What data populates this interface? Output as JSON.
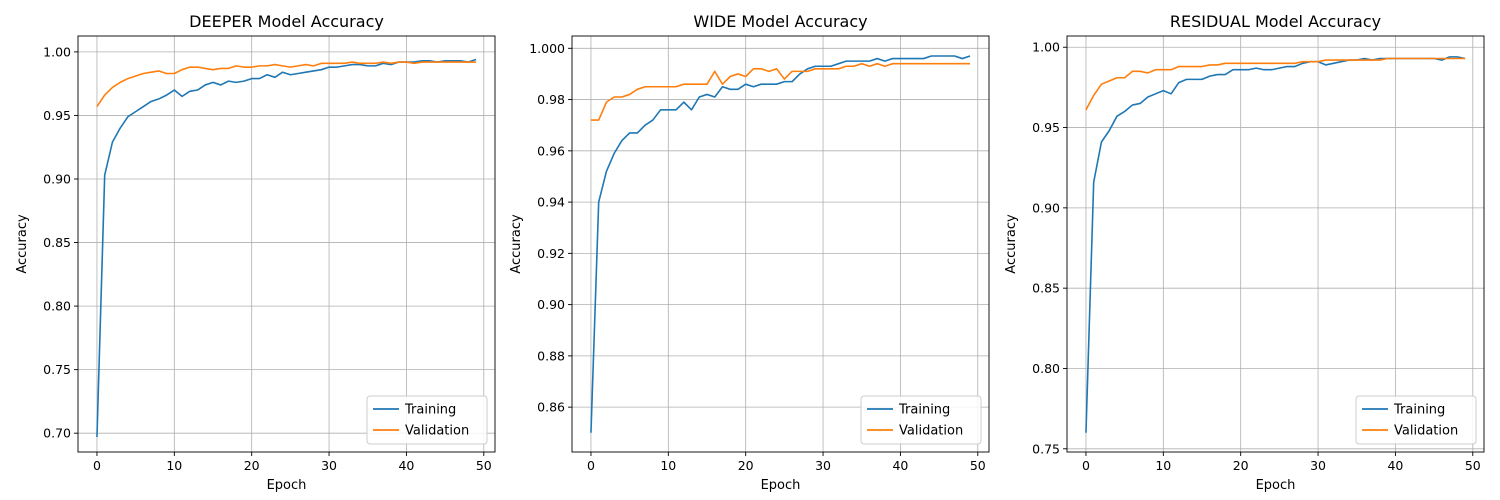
{
  "figure": {
    "colors": {
      "training": "#1f77b4",
      "validation": "#ff7f0e",
      "grid": "#b0b0b0",
      "legend_border": "#cccccc"
    }
  },
  "chart_data": [
    {
      "type": "line",
      "title": "DEEPER Model Accuracy",
      "xlabel": "Epoch",
      "ylabel": "Accuracy",
      "xlim": [
        -2.45,
        51.45
      ],
      "ylim": [
        0.6852,
        1.0125
      ],
      "xticks": [
        0,
        10,
        20,
        30,
        40,
        50
      ],
      "xtick_labels": [
        "0",
        "10",
        "20",
        "30",
        "40",
        "50"
      ],
      "yticks": [
        0.7,
        0.75,
        0.8,
        0.85,
        0.9,
        0.95,
        1.0
      ],
      "ytick_labels": [
        "0.70",
        "0.75",
        "0.80",
        "0.85",
        "0.90",
        "0.95",
        "1.00"
      ],
      "grid": true,
      "legend_position": "lower-right",
      "x": [
        0,
        1,
        2,
        3,
        4,
        5,
        6,
        7,
        8,
        9,
        10,
        11,
        12,
        13,
        14,
        15,
        16,
        17,
        18,
        19,
        20,
        21,
        22,
        23,
        24,
        25,
        26,
        27,
        28,
        29,
        30,
        31,
        32,
        33,
        34,
        35,
        36,
        37,
        38,
        39,
        40,
        41,
        42,
        43,
        44,
        45,
        46,
        47,
        48,
        49
      ],
      "series": [
        {
          "name": "Training",
          "key": "training",
          "values": [
            0.697,
            0.903,
            0.929,
            0.94,
            0.949,
            0.953,
            0.957,
            0.961,
            0.963,
            0.966,
            0.97,
            0.965,
            0.969,
            0.97,
            0.974,
            0.976,
            0.974,
            0.977,
            0.976,
            0.977,
            0.979,
            0.979,
            0.982,
            0.98,
            0.984,
            0.982,
            0.983,
            0.984,
            0.985,
            0.986,
            0.988,
            0.988,
            0.989,
            0.99,
            0.99,
            0.989,
            0.989,
            0.991,
            0.99,
            0.992,
            0.992,
            0.992,
            0.993,
            0.993,
            0.992,
            0.993,
            0.993,
            0.993,
            0.992,
            0.994
          ]
        },
        {
          "name": "Validation",
          "key": "validation",
          "values": [
            0.957,
            0.966,
            0.972,
            0.976,
            0.979,
            0.981,
            0.983,
            0.984,
            0.985,
            0.983,
            0.983,
            0.986,
            0.988,
            0.988,
            0.987,
            0.986,
            0.987,
            0.987,
            0.989,
            0.988,
            0.988,
            0.989,
            0.989,
            0.99,
            0.989,
            0.988,
            0.989,
            0.99,
            0.989,
            0.991,
            0.991,
            0.991,
            0.991,
            0.992,
            0.991,
            0.991,
            0.991,
            0.992,
            0.991,
            0.992,
            0.992,
            0.991,
            0.992,
            0.992,
            0.992,
            0.992,
            0.992,
            0.992,
            0.992,
            0.992
          ]
        }
      ]
    },
    {
      "type": "line",
      "title": "WIDE Model Accuracy",
      "xlabel": "Epoch",
      "ylabel": "Accuracy",
      "xlim": [
        -2.45,
        51.45
      ],
      "ylim": [
        0.8425,
        1.0048
      ],
      "xticks": [
        0,
        10,
        20,
        30,
        40,
        50
      ],
      "xtick_labels": [
        "0",
        "10",
        "20",
        "30",
        "40",
        "50"
      ],
      "yticks": [
        0.86,
        0.88,
        0.9,
        0.92,
        0.94,
        0.96,
        0.98,
        1.0
      ],
      "ytick_labels": [
        "0.86",
        "0.88",
        "0.90",
        "0.92",
        "0.94",
        "0.96",
        "0.98",
        "1.000"
      ],
      "grid": true,
      "legend_position": "lower-right",
      "x": [
        0,
        1,
        2,
        3,
        4,
        5,
        6,
        7,
        8,
        9,
        10,
        11,
        12,
        13,
        14,
        15,
        16,
        17,
        18,
        19,
        20,
        21,
        22,
        23,
        24,
        25,
        26,
        27,
        28,
        29,
        30,
        31,
        32,
        33,
        34,
        35,
        36,
        37,
        38,
        39,
        40,
        41,
        42,
        43,
        44,
        45,
        46,
        47,
        48,
        49
      ],
      "series": [
        {
          "name": "Training",
          "key": "training",
          "values": [
            0.85,
            0.94,
            0.952,
            0.959,
            0.964,
            0.967,
            0.967,
            0.97,
            0.972,
            0.976,
            0.976,
            0.976,
            0.979,
            0.976,
            0.981,
            0.982,
            0.981,
            0.985,
            0.984,
            0.984,
            0.986,
            0.985,
            0.986,
            0.986,
            0.986,
            0.987,
            0.987,
            0.99,
            0.992,
            0.993,
            0.993,
            0.993,
            0.994,
            0.995,
            0.995,
            0.995,
            0.995,
            0.996,
            0.995,
            0.996,
            0.996,
            0.996,
            0.996,
            0.996,
            0.997,
            0.997,
            0.997,
            0.997,
            0.996,
            0.997
          ]
        },
        {
          "name": "Validation",
          "key": "validation",
          "values": [
            0.972,
            0.972,
            0.979,
            0.981,
            0.981,
            0.982,
            0.984,
            0.985,
            0.985,
            0.985,
            0.985,
            0.985,
            0.986,
            0.986,
            0.986,
            0.986,
            0.991,
            0.986,
            0.989,
            0.99,
            0.989,
            0.992,
            0.992,
            0.991,
            0.992,
            0.988,
            0.991,
            0.991,
            0.991,
            0.992,
            0.992,
            0.992,
            0.992,
            0.993,
            0.993,
            0.994,
            0.993,
            0.994,
            0.993,
            0.994,
            0.994,
            0.994,
            0.994,
            0.994,
            0.994,
            0.994,
            0.994,
            0.994,
            0.994,
            0.994
          ]
        }
      ]
    },
    {
      "type": "line",
      "title": "RESIDUAL Model Accuracy",
      "xlabel": "Epoch",
      "ylabel": "Accuracy",
      "xlim": [
        -2.45,
        51.45
      ],
      "ylim": [
        0.748,
        1.007
      ],
      "xticks": [
        0,
        10,
        20,
        30,
        40,
        50
      ],
      "xtick_labels": [
        "0",
        "10",
        "20",
        "30",
        "40",
        "50"
      ],
      "yticks": [
        0.75,
        0.8,
        0.85,
        0.9,
        0.95,
        1.0
      ],
      "ytick_labels": [
        "0.75",
        "0.80",
        "0.85",
        "0.90",
        "0.95",
        "1.00"
      ],
      "grid": true,
      "legend_position": "lower-right",
      "x": [
        0,
        1,
        2,
        3,
        4,
        5,
        6,
        7,
        8,
        9,
        10,
        11,
        12,
        13,
        14,
        15,
        16,
        17,
        18,
        19,
        20,
        21,
        22,
        23,
        24,
        25,
        26,
        27,
        28,
        29,
        30,
        31,
        32,
        33,
        34,
        35,
        36,
        37,
        38,
        39,
        40,
        41,
        42,
        43,
        44,
        45,
        46,
        47,
        48,
        49
      ],
      "series": [
        {
          "name": "Training",
          "key": "training",
          "values": [
            0.76,
            0.916,
            0.941,
            0.948,
            0.957,
            0.96,
            0.964,
            0.965,
            0.969,
            0.971,
            0.973,
            0.971,
            0.978,
            0.98,
            0.98,
            0.98,
            0.982,
            0.983,
            0.983,
            0.986,
            0.986,
            0.986,
            0.987,
            0.986,
            0.986,
            0.987,
            0.988,
            0.988,
            0.99,
            0.991,
            0.991,
            0.989,
            0.99,
            0.991,
            0.992,
            0.992,
            0.993,
            0.992,
            0.993,
            0.993,
            0.993,
            0.993,
            0.993,
            0.993,
            0.993,
            0.993,
            0.992,
            0.994,
            0.994,
            0.993
          ]
        },
        {
          "name": "Validation",
          "key": "validation",
          "values": [
            0.961,
            0.97,
            0.977,
            0.979,
            0.981,
            0.981,
            0.985,
            0.985,
            0.984,
            0.986,
            0.986,
            0.986,
            0.988,
            0.988,
            0.988,
            0.988,
            0.989,
            0.989,
            0.99,
            0.99,
            0.99,
            0.99,
            0.99,
            0.99,
            0.99,
            0.99,
            0.99,
            0.99,
            0.991,
            0.991,
            0.991,
            0.992,
            0.992,
            0.992,
            0.992,
            0.992,
            0.992,
            0.992,
            0.992,
            0.993,
            0.993,
            0.993,
            0.993,
            0.993,
            0.993,
            0.993,
            0.993,
            0.993,
            0.993,
            0.993
          ]
        }
      ]
    }
  ]
}
